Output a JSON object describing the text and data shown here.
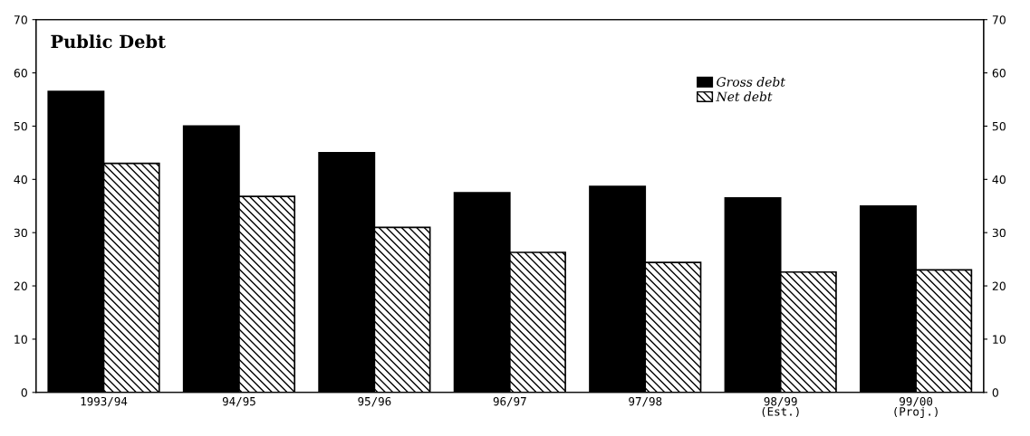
{
  "chart_data": {
    "type": "bar",
    "title": "Public Debt",
    "categories": [
      "1993/94",
      "94/95",
      "95/96",
      "96/97",
      "97/98",
      "98/99\n(Est.)",
      "99/00\n(Proj.)"
    ],
    "series": [
      {
        "name": "Gross debt",
        "color": "#000000",
        "values": [
          56.5,
          50,
          45,
          37.5,
          38.7,
          36.5,
          35
        ]
      },
      {
        "name": "Net debt",
        "color": "#000000",
        "values": [
          43,
          36.8,
          31,
          26.3,
          24.4,
          22.6,
          23.0
        ]
      }
    ],
    "ylim": [
      0,
      70
    ],
    "yticks": [
      0,
      10,
      20,
      30,
      40,
      50,
      60,
      70
    ],
    "y2lim": [
      0,
      70
    ],
    "y2ticks": [
      0,
      10,
      20,
      30,
      40,
      50,
      60,
      70
    ],
    "grid": false,
    "legend": "top right"
  }
}
